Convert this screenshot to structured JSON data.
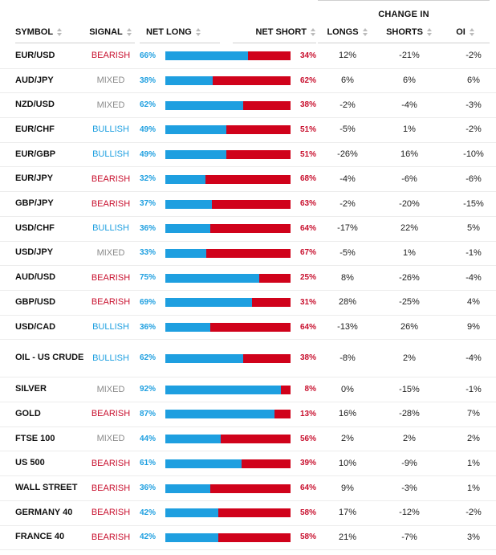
{
  "header": {
    "change_in": "CHANGE IN",
    "symbol": "SYMBOL",
    "signal": "SIGNAL",
    "net_long": "NET LONG",
    "net_short": "NET SHORT",
    "longs": "LONGS",
    "shorts": "SHORTS",
    "oi": "OI"
  },
  "colors": {
    "long": "#1e9fe0",
    "short": "#d0021b",
    "bearish": "#c8102e",
    "bullish": "#1e9fe0",
    "mixed": "#8a8a8a"
  },
  "rows": [
    {
      "symbol": "EUR/USD",
      "signal": "BEARISH",
      "net_long": 66,
      "net_long_label": "66%",
      "net_short_label": "34%",
      "longs": "12%",
      "shorts": "-21%",
      "oi": "-2%"
    },
    {
      "symbol": "AUD/JPY",
      "signal": "MIXED",
      "net_long": 38,
      "net_long_label": "38%",
      "net_short_label": "62%",
      "longs": "6%",
      "shorts": "6%",
      "oi": "6%"
    },
    {
      "symbol": "NZD/USD",
      "signal": "MIXED",
      "net_long": 62,
      "net_long_label": "62%",
      "net_short_label": "38%",
      "longs": "-2%",
      "shorts": "-4%",
      "oi": "-3%"
    },
    {
      "symbol": "EUR/CHF",
      "signal": "BULLISH",
      "net_long": 49,
      "net_long_label": "49%",
      "net_short_label": "51%",
      "longs": "-5%",
      "shorts": "1%",
      "oi": "-2%"
    },
    {
      "symbol": "EUR/GBP",
      "signal": "BULLISH",
      "net_long": 49,
      "net_long_label": "49%",
      "net_short_label": "51%",
      "longs": "-26%",
      "shorts": "16%",
      "oi": "-10%"
    },
    {
      "symbol": "EUR/JPY",
      "signal": "BEARISH",
      "net_long": 32,
      "net_long_label": "32%",
      "net_short_label": "68%",
      "longs": "-4%",
      "shorts": "-6%",
      "oi": "-6%"
    },
    {
      "symbol": "GBP/JPY",
      "signal": "BEARISH",
      "net_long": 37,
      "net_long_label": "37%",
      "net_short_label": "63%",
      "longs": "-2%",
      "shorts": "-20%",
      "oi": "-15%"
    },
    {
      "symbol": "USD/CHF",
      "signal": "BULLISH",
      "net_long": 36,
      "net_long_label": "36%",
      "net_short_label": "64%",
      "longs": "-17%",
      "shorts": "22%",
      "oi": "5%"
    },
    {
      "symbol": "USD/JPY",
      "signal": "MIXED",
      "net_long": 33,
      "net_long_label": "33%",
      "net_short_label": "67%",
      "longs": "-5%",
      "shorts": "1%",
      "oi": "-1%"
    },
    {
      "symbol": "AUD/USD",
      "signal": "BEARISH",
      "net_long": 75,
      "net_long_label": "75%",
      "net_short_label": "25%",
      "longs": "8%",
      "shorts": "-26%",
      "oi": "-4%"
    },
    {
      "symbol": "GBP/USD",
      "signal": "BEARISH",
      "net_long": 69,
      "net_long_label": "69%",
      "net_short_label": "31%",
      "longs": "28%",
      "shorts": "-25%",
      "oi": "4%"
    },
    {
      "symbol": "USD/CAD",
      "signal": "BULLISH",
      "net_long": 36,
      "net_long_label": "36%",
      "net_short_label": "64%",
      "longs": "-13%",
      "shorts": "26%",
      "oi": "9%"
    },
    {
      "symbol": "OIL - US CRUDE",
      "signal": "BULLISH",
      "net_long": 62,
      "net_long_label": "62%",
      "net_short_label": "38%",
      "longs": "-8%",
      "shorts": "2%",
      "oi": "-4%"
    },
    {
      "symbol": "SILVER",
      "signal": "MIXED",
      "net_long": 92,
      "net_long_label": "92%",
      "net_short_label": "8%",
      "longs": "0%",
      "shorts": "-15%",
      "oi": "-1%"
    },
    {
      "symbol": "GOLD",
      "signal": "BEARISH",
      "net_long": 87,
      "net_long_label": "87%",
      "net_short_label": "13%",
      "longs": "16%",
      "shorts": "-28%",
      "oi": "7%"
    },
    {
      "symbol": "FTSE 100",
      "signal": "MIXED",
      "net_long": 44,
      "net_long_label": "44%",
      "net_short_label": "56%",
      "longs": "2%",
      "shorts": "2%",
      "oi": "2%"
    },
    {
      "symbol": "US 500",
      "signal": "BEARISH",
      "net_long": 61,
      "net_long_label": "61%",
      "net_short_label": "39%",
      "longs": "10%",
      "shorts": "-9%",
      "oi": "1%"
    },
    {
      "symbol": "WALL STREET",
      "signal": "BEARISH",
      "net_long": 36,
      "net_long_label": "36%",
      "net_short_label": "64%",
      "longs": "9%",
      "shorts": "-3%",
      "oi": "1%"
    },
    {
      "symbol": "GERMANY 40",
      "signal": "BEARISH",
      "net_long": 42,
      "net_long_label": "42%",
      "net_short_label": "58%",
      "longs": "17%",
      "shorts": "-12%",
      "oi": "-2%"
    },
    {
      "symbol": "FRANCE 40",
      "signal": "BEARISH",
      "net_long": 42,
      "net_long_label": "42%",
      "net_short_label": "58%",
      "longs": "21%",
      "shorts": "-7%",
      "oi": "3%"
    }
  ]
}
